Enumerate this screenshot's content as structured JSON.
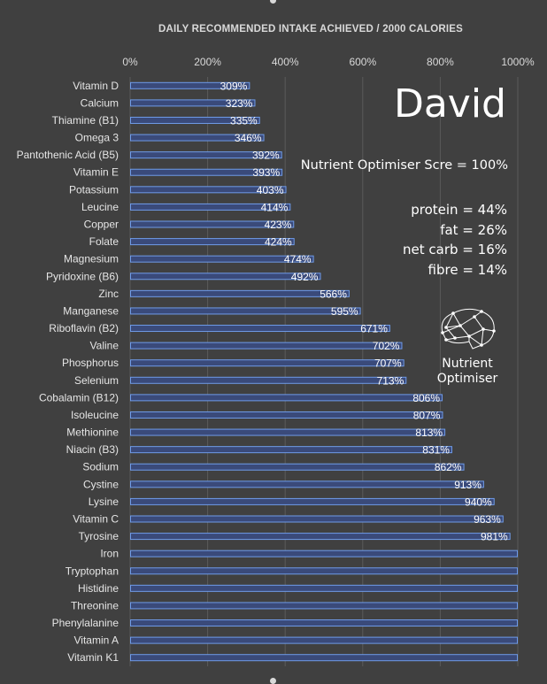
{
  "chart_data": {
    "type": "bar",
    "orientation": "horizontal",
    "title": "DAILY RECOMMENDED INTAKE ACHIEVED / 2000 CALORIES",
    "xlim": [
      0,
      10
    ],
    "xticks": [
      "0%",
      "200%",
      "400%",
      "600%",
      "800%",
      "1000%"
    ],
    "grid": true,
    "categories": [
      "Vitamin D",
      "Calcium",
      "Thiamine (B1)",
      "Omega 3",
      "Pantothenic Acid (B5)",
      "Vitamin E",
      "Potassium",
      "Leucine",
      "Copper",
      "Folate",
      "Magnesium",
      "Pyridoxine (B6)",
      "Zinc",
      "Manganese",
      "Riboflavin (B2)",
      "Valine",
      "Phosphorus",
      "Selenium",
      "Cobalamin (B12)",
      "Isoleucine",
      "Methionine",
      "Niacin (B3)",
      "Sodium",
      "Cystine",
      "Lysine",
      "Vitamin C",
      "Tyrosine",
      "Iron",
      "Tryptophan",
      "Histidine",
      "Threonine",
      "Phenylalanine",
      "Vitamin A",
      "Vitamin K1"
    ],
    "values": [
      3.09,
      3.23,
      3.35,
      3.46,
      3.92,
      3.93,
      4.03,
      4.14,
      4.23,
      4.24,
      4.74,
      4.92,
      5.66,
      5.95,
      6.71,
      7.02,
      7.07,
      7.13,
      8.06,
      8.07,
      8.13,
      8.31,
      8.62,
      9.13,
      9.4,
      9.63,
      9.81,
      10,
      10,
      10,
      10,
      10,
      10,
      10
    ],
    "data_labels": [
      "309%",
      "323%",
      "335%",
      "346%",
      "392%",
      "393%",
      "403%",
      "414%",
      "423%",
      "424%",
      "474%",
      "492%",
      "566%",
      "595%",
      "671%",
      "702%",
      "707%",
      "713%",
      "806%",
      "807%",
      "813%",
      "831%",
      "862%",
      "913%",
      "940%",
      "963%",
      "981%",
      "",
      "",
      "",
      "",
      "",
      "",
      ""
    ],
    "bar_color": "#3a4a7a",
    "bar_edge_color": "#6f9be8"
  },
  "annotations": {
    "name": "David",
    "score": "Nutrient Optimiser Scre = 100%",
    "macros": [
      "protein = 44%",
      "fat = 26%",
      "net carb = 16%",
      "fibre = 14%"
    ]
  },
  "logo": {
    "icon": "brain-network-icon",
    "line1": "Nutrient",
    "line2": "Optimiser"
  },
  "colors": {
    "background": "#404040",
    "text": "#ffffff"
  }
}
